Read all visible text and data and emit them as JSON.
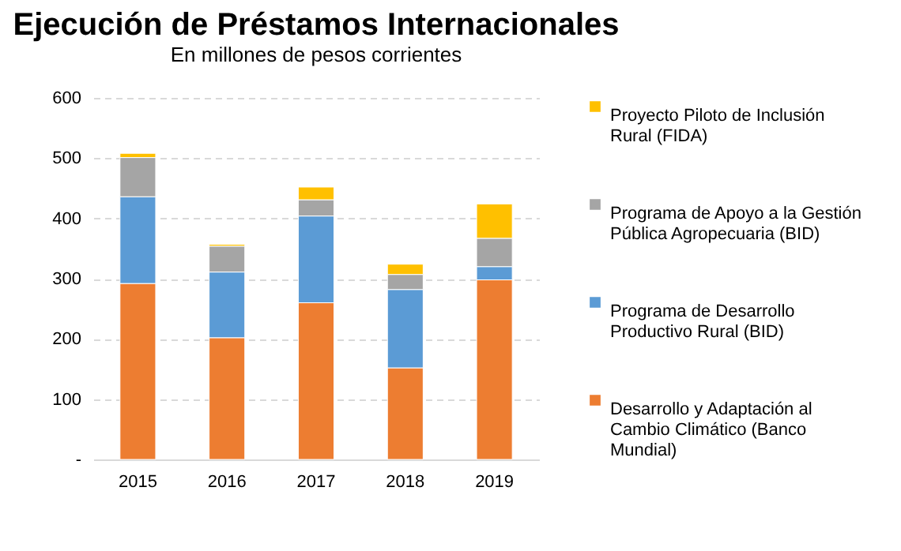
{
  "chart_data": {
    "type": "bar",
    "title": "Ejecución de Préstamos Internacionales",
    "subtitle": "En millones de pesos corrientes",
    "categories": [
      "2015",
      "2016",
      "2017",
      "2018",
      "2019"
    ],
    "stacked": true,
    "series": [
      {
        "name": "Desarrollo y Adaptación al Cambio Climático (Banco Mundial)",
        "color": "#ed7d31",
        "values": [
          292,
          202,
          260,
          152,
          298
        ]
      },
      {
        "name": "Programa de Desarrollo Productivo Rural (BID)",
        "color": "#5b9bd5",
        "values": [
          144,
          109,
          144,
          130,
          22
        ]
      },
      {
        "name": "Programa de Apoyo a la Gestión Pública Agropecuaria (BID)",
        "color": "#a5a5a5",
        "values": [
          65,
          43,
          27,
          25,
          47
        ]
      },
      {
        "name": "Proyecto Piloto de Inclusión Rural (FIDA)",
        "color": "#ffc000",
        "values": [
          7,
          3,
          21,
          17,
          57
        ]
      }
    ],
    "ylim": [
      0,
      600
    ],
    "yticks": [
      {
        "value": 0,
        "label": "-"
      },
      100,
      200,
      300,
      400,
      500,
      600
    ],
    "grid": "y",
    "legend": "right"
  }
}
